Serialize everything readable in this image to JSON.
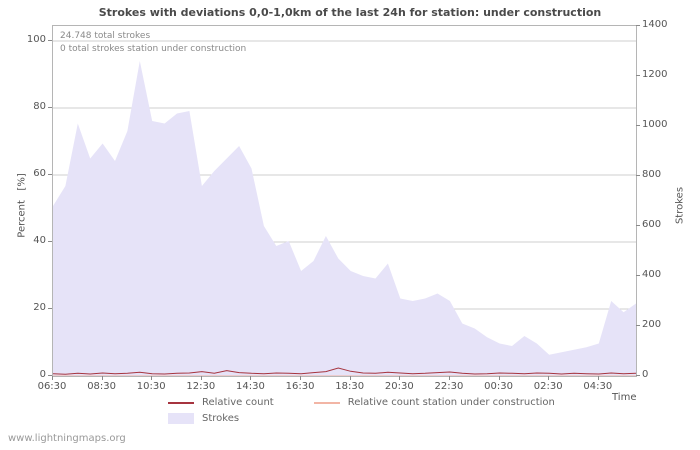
{
  "title": "Strokes with deviations 0,0-1,0km of the last 24h for station: under construction",
  "annotations": {
    "total_strokes": "24.748 total strokes",
    "station_strokes": "0 total strokes station under construction"
  },
  "axes": {
    "left_label": "Percent   [%]",
    "right_label": "Strokes",
    "x_label": "Time",
    "left_ticks": [
      "0",
      "20",
      "40",
      "60",
      "80",
      "100"
    ],
    "right_ticks": [
      "0",
      "200",
      "400",
      "600",
      "800",
      "1000",
      "1200",
      "1400"
    ],
    "x_ticks": [
      "06:30",
      "08:30",
      "10:30",
      "12:30",
      "14:30",
      "16:30",
      "18:30",
      "20:30",
      "22:30",
      "00:30",
      "02:30",
      "04:30"
    ]
  },
  "legend": {
    "relative": "Relative count",
    "relative_station": "Relative count station under construction",
    "strokes": "Strokes"
  },
  "footer": "www.lightningmaps.org",
  "colors": {
    "area": "#e6e3f8",
    "relative": "#a6343f",
    "relative_station": "#f2b5a5",
    "grid": "#cfcfcf"
  },
  "chart_data": {
    "type": "area",
    "title": "Strokes with deviations 0,0-1,0km of the last 24h for station: under construction",
    "x": [
      "06:30",
      "07:00",
      "07:30",
      "08:00",
      "08:30",
      "09:00",
      "09:30",
      "10:00",
      "10:30",
      "11:00",
      "11:30",
      "12:00",
      "12:30",
      "13:00",
      "13:30",
      "14:00",
      "14:30",
      "15:00",
      "15:30",
      "16:00",
      "16:30",
      "17:00",
      "17:30",
      "18:00",
      "18:30",
      "19:00",
      "19:30",
      "20:00",
      "20:30",
      "21:00",
      "21:30",
      "22:00",
      "22:30",
      "23:00",
      "23:30",
      "00:00",
      "00:30",
      "01:00",
      "01:30",
      "02:00",
      "02:30",
      "03:00",
      "03:30",
      "04:00",
      "04:30",
      "05:00",
      "05:30",
      "06:00"
    ],
    "series": [
      {
        "name": "Strokes",
        "type": "area",
        "axis": "right",
        "values": [
          680,
          760,
          1010,
          870,
          930,
          860,
          980,
          1260,
          1020,
          1010,
          1050,
          1060,
          760,
          820,
          870,
          920,
          830,
          600,
          520,
          540,
          420,
          460,
          560,
          470,
          420,
          400,
          390,
          450,
          310,
          300,
          310,
          330,
          300,
          210,
          190,
          155,
          130,
          120,
          160,
          130,
          85,
          95,
          105,
          115,
          130,
          300,
          255,
          290
        ]
      },
      {
        "name": "Relative count",
        "type": "line",
        "axis": "left",
        "values": [
          0.7,
          0.5,
          0.8,
          0.6,
          0.9,
          0.7,
          0.8,
          1.1,
          0.7,
          0.6,
          0.8,
          0.9,
          1.3,
          0.8,
          1.6,
          1.0,
          0.8,
          0.7,
          0.9,
          0.8,
          0.7,
          1.0,
          1.3,
          2.4,
          1.4,
          0.9,
          0.8,
          1.1,
          0.9,
          0.7,
          0.8,
          1.0,
          1.2,
          0.8,
          0.6,
          0.7,
          0.9,
          0.8,
          0.7,
          0.9,
          0.8,
          0.6,
          0.8,
          0.7,
          0.6,
          0.9,
          0.7,
          0.8
        ]
      },
      {
        "name": "Relative count station under construction",
        "type": "line",
        "axis": "left",
        "values": [
          0,
          0,
          0,
          0,
          0,
          0,
          0,
          0,
          0,
          0,
          0,
          0,
          0,
          0,
          0,
          0,
          0,
          0,
          0,
          0,
          0,
          0,
          0,
          0,
          0,
          0,
          0,
          0,
          0,
          0,
          0,
          0,
          0,
          0,
          0,
          0,
          0,
          0,
          0,
          0,
          0,
          0,
          0,
          0,
          0,
          0,
          0,
          0
        ]
      }
    ],
    "left_axis": {
      "label": "Percent [%]",
      "range": [
        0,
        100
      ]
    },
    "right_axis": {
      "label": "Strokes",
      "range": [
        0,
        1400
      ]
    },
    "x_axis": {
      "label": "Time"
    },
    "grid": true,
    "legend_position": "bottom"
  }
}
